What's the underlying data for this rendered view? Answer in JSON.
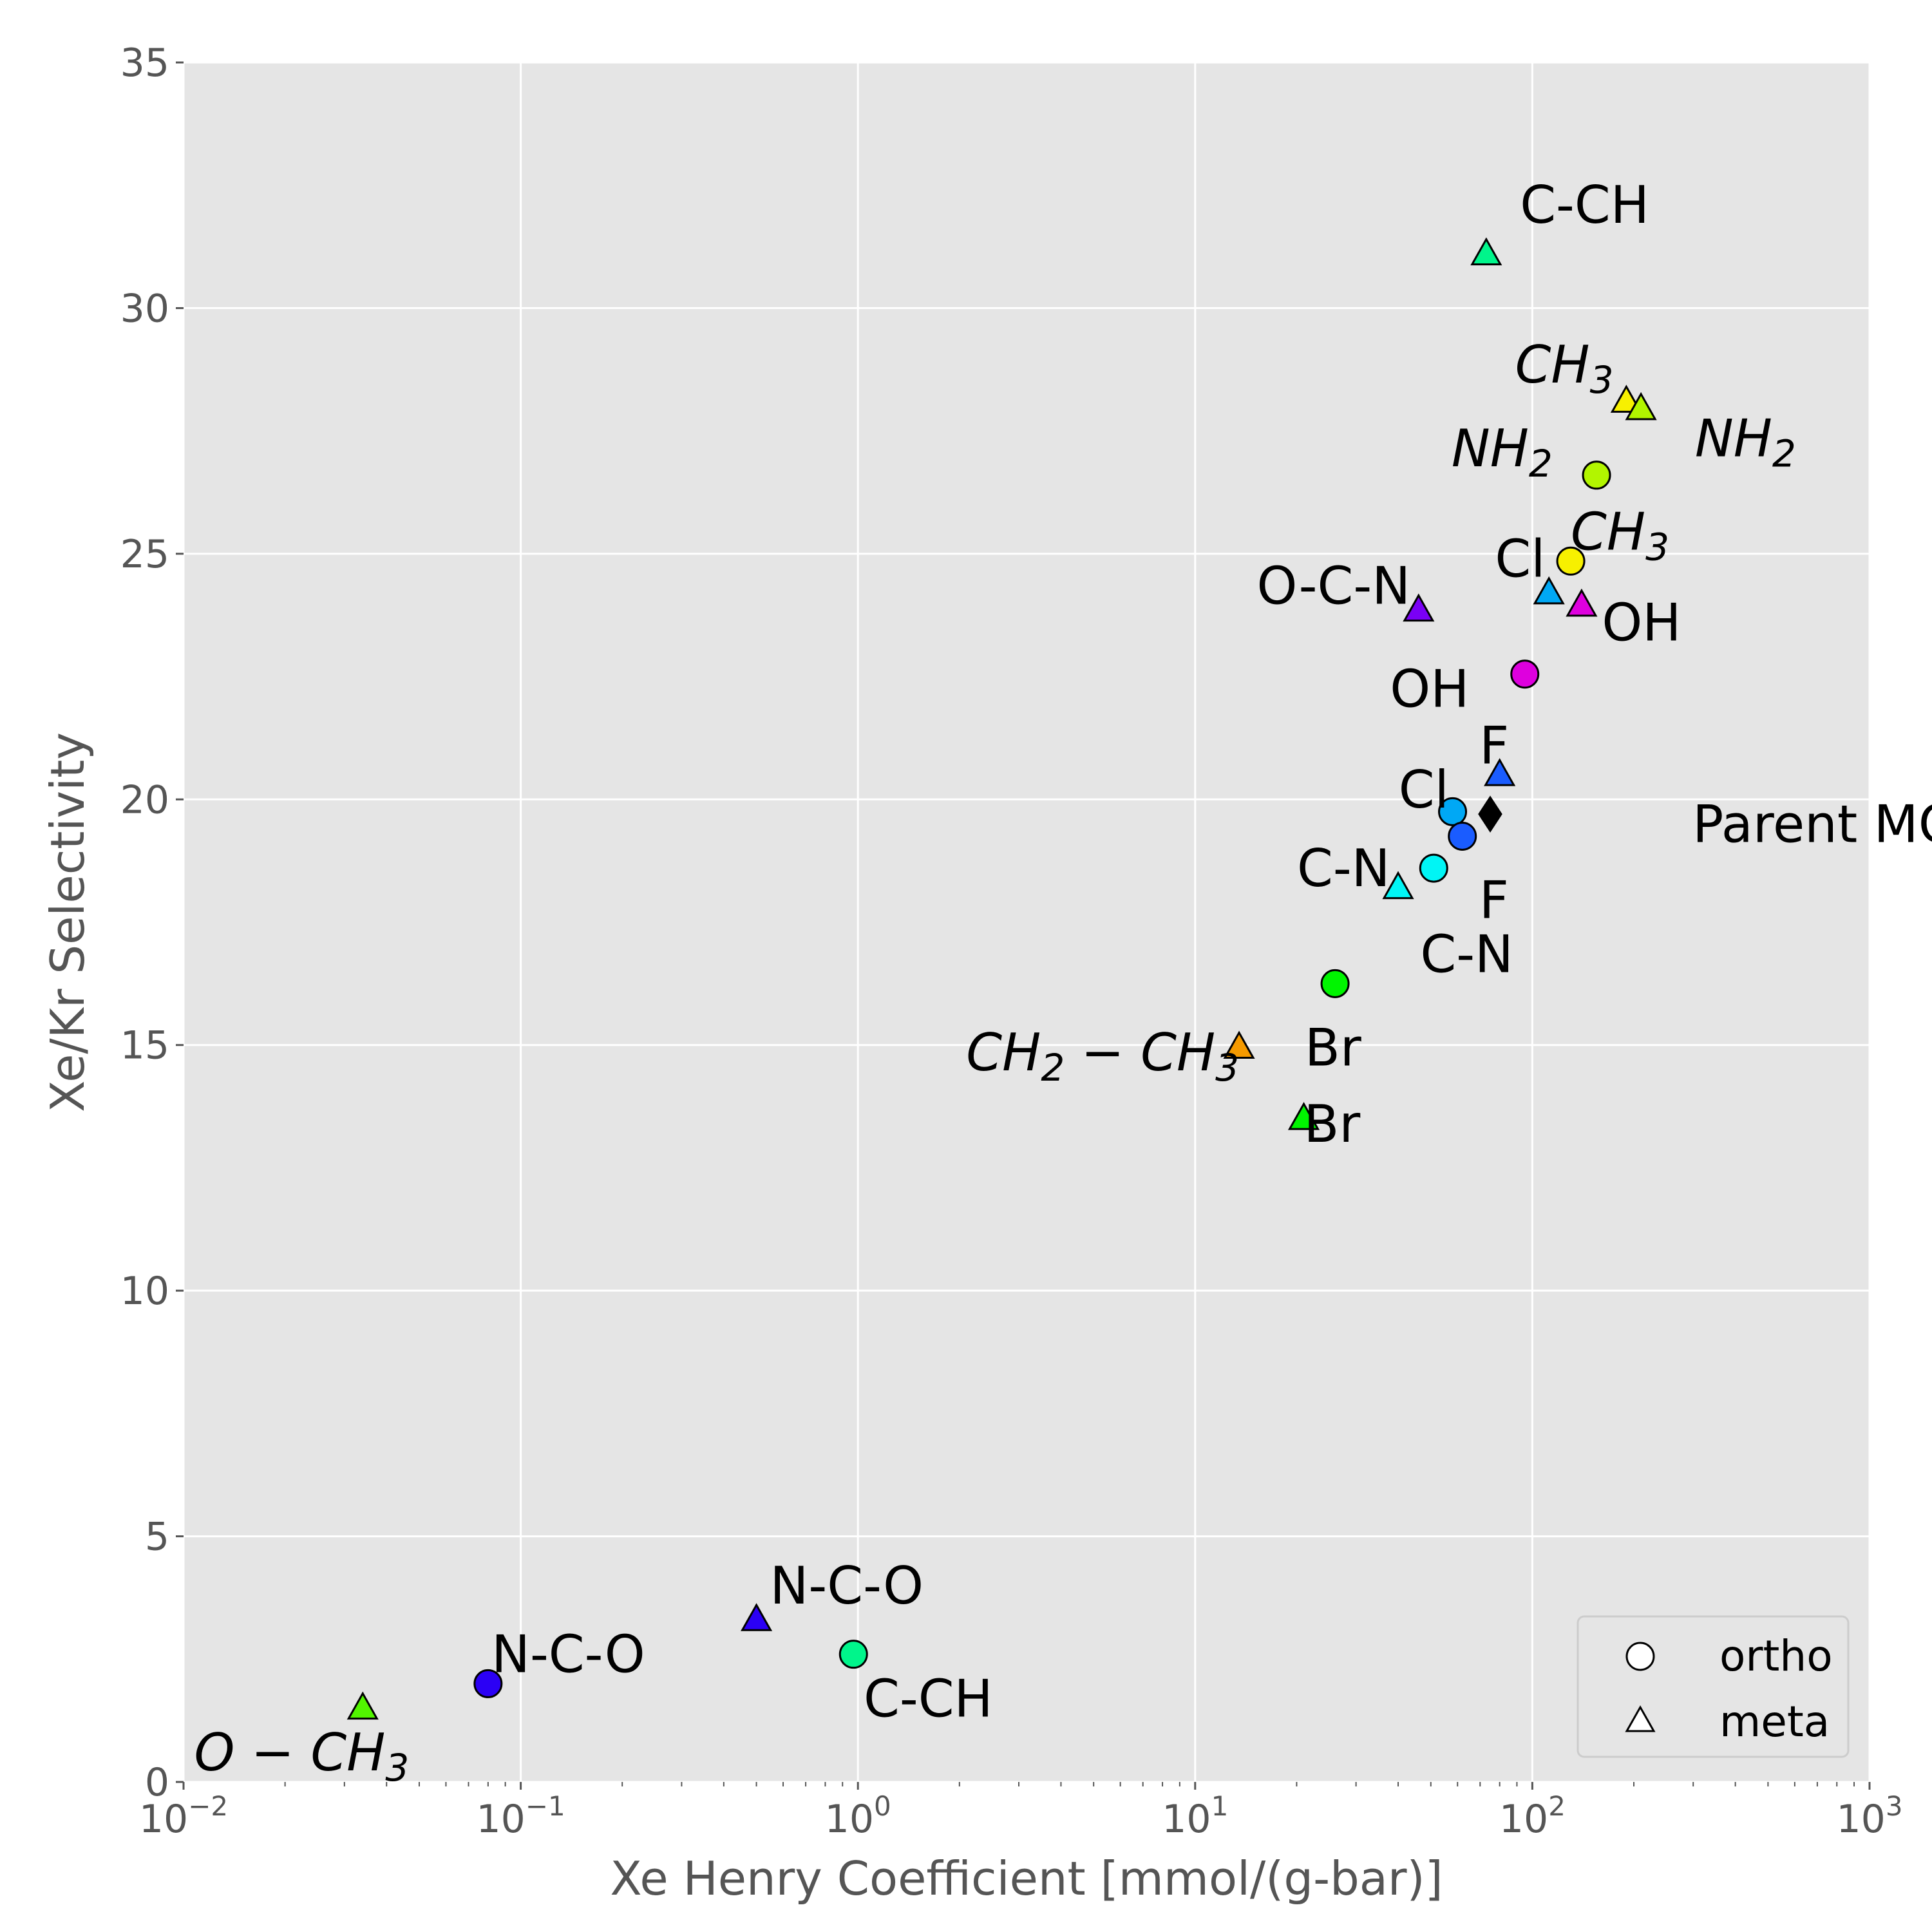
{
  "chart_data": {
    "type": "scatter",
    "title": "",
    "xlabel": "Xe Henry Coefficient [mmol/(g-bar)]",
    "ylabel": "Xe/Kr Selectivity",
    "xscale": "log",
    "xlim": [
      0.01,
      1000
    ],
    "ylim": [
      0,
      35
    ],
    "x_ticks": [
      {
        "base": "10",
        "exp": "−2",
        "value": 0.01
      },
      {
        "base": "10",
        "exp": "−1",
        "value": 0.1
      },
      {
        "base": "10",
        "exp": "0",
        "value": 1
      },
      {
        "base": "10",
        "exp": "1",
        "value": 10
      },
      {
        "base": "10",
        "exp": "2",
        "value": 100
      },
      {
        "base": "10",
        "exp": "3",
        "value": 1000
      }
    ],
    "y_ticks": [
      "0",
      "5",
      "10",
      "15",
      "20",
      "25",
      "30",
      "35"
    ],
    "grid": true,
    "legend": {
      "placement": "bottom-right",
      "entries": [
        {
          "label": "ortho",
          "marker": "circle"
        },
        {
          "label": "meta",
          "marker": "triangle"
        }
      ]
    },
    "points": [
      {
        "x": 75,
        "y": 19.7,
        "marker": "diamond",
        "color": "#000000",
        "label": "Parent MOF",
        "label_parts": [
          {
            "t": "Parent MOF"
          }
        ],
        "anchor": "start",
        "dx": 0.6,
        "dy": 0.2
      },
      {
        "x": 73,
        "y": 31.1,
        "marker": "triangle",
        "color": "#00f58b",
        "label": "C-CH",
        "label_parts": [
          {
            "t": "C-CH"
          }
        ],
        "anchor": "start",
        "dx": 0.1,
        "dy": -1.0
      },
      {
        "x": 0.97,
        "y": 2.6,
        "marker": "circle",
        "color": "#00f58b",
        "label": "C-CH",
        "label_parts": [
          {
            "t": "C-CH"
          }
        ],
        "anchor": "start",
        "dx": 0.03,
        "dy": 0.9
      },
      {
        "x": 190,
        "y": 28.1,
        "marker": "triangle",
        "color": "#f7f000",
        "label": "CH3",
        "label_parts": [
          {
            "t": "CH",
            "i": true
          },
          {
            "t": "3",
            "sub": true,
            "i": true
          }
        ],
        "anchor": "start",
        "dx": -0.33,
        "dy": -0.75
      },
      {
        "x": 210,
        "y": 27.95,
        "marker": "triangle",
        "color": "#b2f500",
        "label": "NH2",
        "label_parts": [
          {
            "t": "NH",
            "i": true
          },
          {
            "t": "2",
            "sub": true,
            "i": true
          }
        ],
        "anchor": "start",
        "dx": 0.16,
        "dy": 0.6
      },
      {
        "x": 155,
        "y": 26.6,
        "marker": "circle",
        "color": "#b2f500",
        "label": "NH2",
        "label_parts": [
          {
            "t": "NH",
            "i": true
          },
          {
            "t": "2",
            "sub": true,
            "i": true
          }
        ],
        "anchor": "start",
        "dx": -0.43,
        "dy": -0.55
      },
      {
        "x": 130,
        "y": 24.85,
        "marker": "circle",
        "color": "#f7f000",
        "label": "CH3",
        "label_parts": [
          {
            "t": "CH",
            "i": true
          },
          {
            "t": "3",
            "sub": true,
            "i": true
          }
        ],
        "anchor": "start",
        "dx": 0.0,
        "dy": -0.6
      },
      {
        "x": 112,
        "y": 24.2,
        "marker": "triangle",
        "color": "#00a8f5",
        "label": "Cl",
        "label_parts": [
          {
            "t": "Cl"
          }
        ],
        "anchor": "start",
        "dx": -0.16,
        "dy": -0.7
      },
      {
        "x": 140,
        "y": 23.95,
        "marker": "triangle",
        "color": "#de00de",
        "label": "OH",
        "label_parts": [
          {
            "t": "OH"
          }
        ],
        "anchor": "start",
        "dx": 0.06,
        "dy": 0.35
      },
      {
        "x": 46,
        "y": 23.85,
        "marker": "triangle",
        "color": "#7a00f5",
        "label": "O-C-N",
        "label_parts": [
          {
            "t": "O-C-N"
          }
        ],
        "anchor": "start",
        "dx": -0.48,
        "dy": -0.5
      },
      {
        "x": 95,
        "y": 22.55,
        "marker": "circle",
        "color": "#de00de",
        "label": "OH",
        "label_parts": [
          {
            "t": "OH"
          }
        ],
        "anchor": "start",
        "dx": -0.4,
        "dy": 0.3
      },
      {
        "x": 80,
        "y": 20.5,
        "marker": "triangle",
        "color": "#1a5cff",
        "label": "F",
        "label_parts": [
          {
            "t": "F"
          }
        ],
        "anchor": "start",
        "dx": -0.06,
        "dy": -0.6
      },
      {
        "x": 58,
        "y": 19.75,
        "marker": "circle",
        "color": "#00a8f5",
        "label": "Cl",
        "label_parts": [
          {
            "t": "Cl"
          }
        ],
        "anchor": "start",
        "dx": -0.16,
        "dy": -0.45
      },
      {
        "x": 62,
        "y": 19.25,
        "marker": "circle",
        "color": "#1a5cff",
        "label": "F",
        "label_parts": [
          {
            "t": "F"
          }
        ],
        "anchor": "start",
        "dx": 0.05,
        "dy": 1.3
      },
      {
        "x": 51,
        "y": 18.6,
        "marker": "circle",
        "color": "#00f5f5",
        "label": "C-N",
        "label_parts": [
          {
            "t": "C-N"
          }
        ],
        "anchor": "start",
        "dx": -0.04,
        "dy": 1.75
      },
      {
        "x": 40,
        "y": 18.2,
        "marker": "triangle",
        "color": "#00f5f5",
        "label": "C-N",
        "label_parts": [
          {
            "t": "C-N"
          }
        ],
        "anchor": "start",
        "dx": -0.3,
        "dy": -0.4
      },
      {
        "x": 26,
        "y": 16.25,
        "marker": "circle",
        "color": "#00f500",
        "label": "Br",
        "label_parts": [
          {
            "t": "Br"
          }
        ],
        "anchor": "start",
        "dx": -0.09,
        "dy": 1.3
      },
      {
        "x": 13.5,
        "y": 14.95,
        "marker": "triangle",
        "color": "#f59a00",
        "label": "CH2−CH3",
        "label_parts": [
          {
            "t": "CH",
            "i": true
          },
          {
            "t": "2",
            "sub": true,
            "i": true
          },
          {
            "t": " − ",
            "i": true
          },
          {
            "t": "CH",
            "i": true
          },
          {
            "t": "3",
            "sub": true,
            "i": true
          }
        ],
        "anchor": "end",
        "dx": 0.0,
        "dy": 0.1
      },
      {
        "x": 21,
        "y": 13.5,
        "marker": "triangle",
        "color": "#00f500",
        "label": "Br",
        "label_parts": [
          {
            "t": "Br"
          }
        ],
        "anchor": "start",
        "dx": 0.0,
        "dy": 0.1
      },
      {
        "x": 0.5,
        "y": 3.3,
        "marker": "triangle",
        "color": "#2b00f5",
        "label": "N-C-O",
        "label_parts": [
          {
            "t": "N-C-O"
          }
        ],
        "anchor": "start",
        "dx": 0.04,
        "dy": -0.7
      },
      {
        "x": 0.08,
        "y": 2.0,
        "marker": "circle",
        "color": "#2b00f5",
        "label": "N-C-O",
        "label_parts": [
          {
            "t": "N-C-O"
          }
        ],
        "anchor": "start",
        "dx": 0.01,
        "dy": -0.6
      },
      {
        "x": 0.034,
        "y": 1.5,
        "marker": "triangle",
        "color": "#52f500",
        "label": "O−CH3",
        "label_parts": [
          {
            "t": "O − ",
            "i": true
          },
          {
            "t": "CH",
            "i": true
          },
          {
            "t": "3",
            "sub": true,
            "i": true
          }
        ],
        "anchor": "start",
        "dx": -0.5,
        "dy": 0.9
      }
    ]
  }
}
